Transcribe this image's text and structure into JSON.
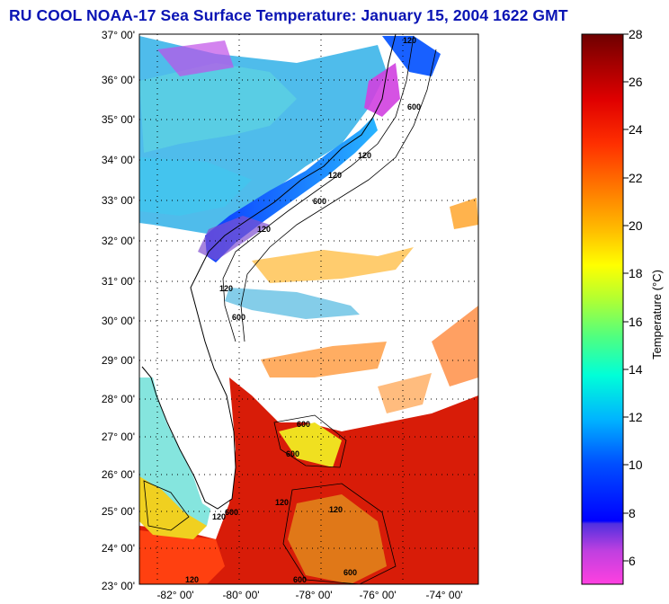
{
  "title": "RU COOL  NOAA-17  Sea Surface Temperature:  January 15, 2004 1622 GMT",
  "map": {
    "lat_labels": [
      "37° 00'",
      "36° 00'",
      "35° 00'",
      "34° 00'",
      "33° 00'",
      "32° 00'",
      "31° 00'",
      "30° 00'",
      "29° 00'",
      "28° 00'",
      "27° 00'",
      "26° 00'",
      "25° 00'",
      "24° 00'",
      "23° 00'"
    ],
    "lon_labels": [
      "-82° 00'",
      "-80° 00'",
      "-78° 00'",
      "-76° 00'",
      "-74° 00'"
    ],
    "contour_labels": [
      "120",
      "600",
      "120",
      "120",
      "600",
      "120",
      "120",
      "600",
      "120",
      "600",
      "600",
      "600",
      "120",
      "120",
      "600",
      "120",
      "600"
    ]
  },
  "colorbar": {
    "label": "Temperature (°C)",
    "ticks": [
      "28",
      "26",
      "24",
      "22",
      "20",
      "18",
      "16",
      "14",
      "12",
      "10",
      "8",
      "6"
    ],
    "min": 5,
    "max": 28
  },
  "colors": {
    "title": "#0a14b4",
    "warm": "#d81c08",
    "cool": "#1e8cff"
  }
}
